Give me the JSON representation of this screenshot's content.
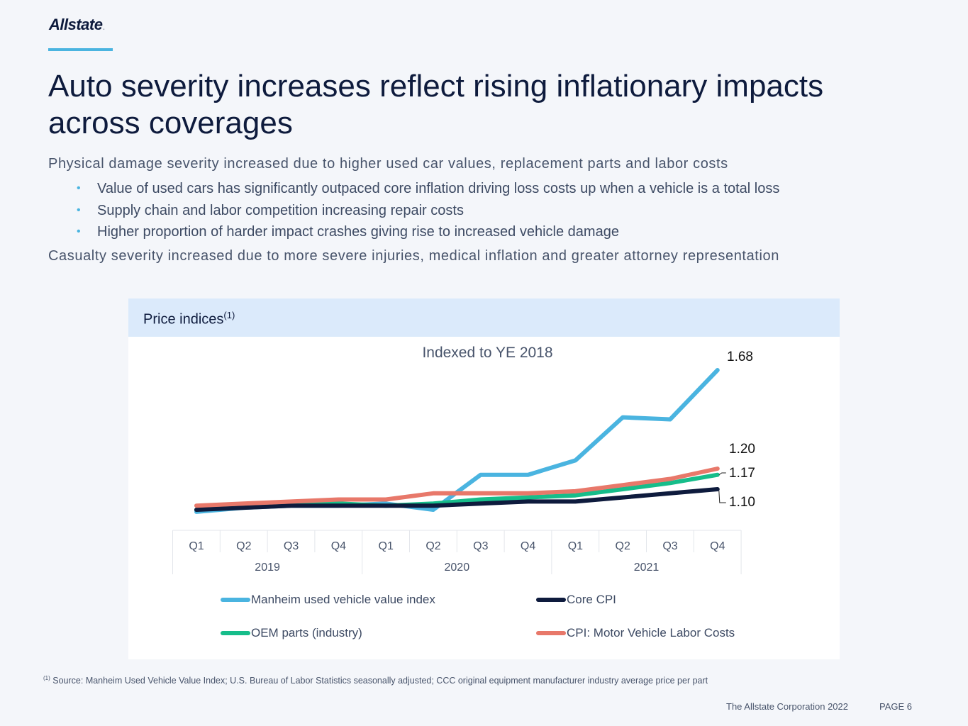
{
  "brand": {
    "logo_text": "Allstate",
    "logo_dot": ".",
    "accent": "#4ab4e0",
    "navy": "#0e1b3d"
  },
  "slide": {
    "title": "Auto severity increases reflect rising inflationary impacts across coverages",
    "lead1": "Physical damage severity increased due to higher used car values, replacement parts and labor costs",
    "bullets": [
      "Value of used cars has significantly outpaced core inflation driving loss costs up when a vehicle is a total loss",
      "Supply chain and labor competition increasing repair costs",
      "Higher proportion of harder impact crashes giving rise to increased vehicle damage"
    ],
    "lead2": "Casualty severity increased due to more severe injuries, medical inflation and greater attorney representation"
  },
  "panel": {
    "title": "Price indices",
    "title_sup": "(1)"
  },
  "chart_data": {
    "type": "line",
    "title": "Indexed to YE 2018",
    "xlabel": "",
    "ylabel": "",
    "categories": [
      "Q1",
      "Q2",
      "Q3",
      "Q4",
      "Q1",
      "Q2",
      "Q3",
      "Q4",
      "Q1",
      "Q2",
      "Q3",
      "Q4"
    ],
    "year_groups": [
      {
        "label": "2019",
        "span": 4
      },
      {
        "label": "2020",
        "span": 4
      },
      {
        "label": "2021",
        "span": 4
      }
    ],
    "ylim": [
      0.95,
      1.75
    ],
    "grid": false,
    "series": [
      {
        "name": "Manheim used vehicle value index",
        "color": "#4ab4e0",
        "values": [
          0.99,
          1.01,
          1.02,
          1.02,
          1.03,
          1.0,
          1.17,
          1.17,
          1.24,
          1.45,
          1.44,
          1.68
        ],
        "end_label": "1.68"
      },
      {
        "name": "Core CPI",
        "color": "#0e1b3d",
        "values": [
          1.0,
          1.01,
          1.02,
          1.02,
          1.02,
          1.02,
          1.03,
          1.04,
          1.04,
          1.06,
          1.08,
          1.1
        ],
        "end_label": "1.10"
      },
      {
        "name": "OEM parts (industry)",
        "color": "#16bd8a",
        "values": [
          1.0,
          1.02,
          1.03,
          1.03,
          1.02,
          1.03,
          1.05,
          1.06,
          1.07,
          1.1,
          1.13,
          1.17
        ],
        "end_label": "1.17"
      },
      {
        "name": "CPI: Motor Vehicle Labor Costs",
        "color": "#e8786a",
        "values": [
          1.02,
          1.03,
          1.04,
          1.05,
          1.05,
          1.08,
          1.08,
          1.08,
          1.09,
          1.12,
          1.15,
          1.2
        ],
        "end_label": "1.20"
      }
    ],
    "legend_position": "bottom"
  },
  "footnote": {
    "sup": "(1)",
    "text": "Source: Manheim Used Vehicle Value Index; U.S. Bureau of Labor Statistics seasonally adjusted; CCC original equipment manufacturer industry average price per part"
  },
  "footer": {
    "corp": "The Allstate Corporation 2022",
    "page": "PAGE 6"
  }
}
